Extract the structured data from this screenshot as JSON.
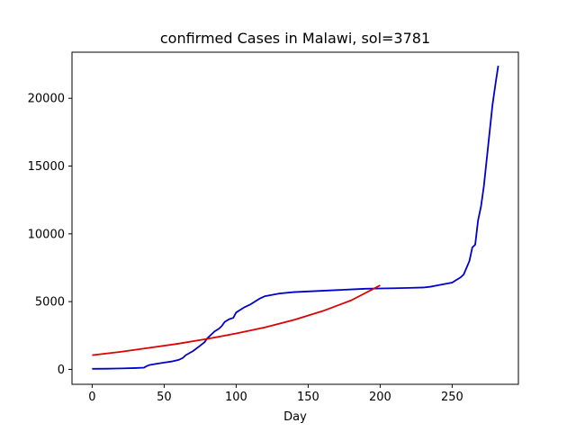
{
  "chart_data": {
    "type": "line",
    "title": "confirmed Cases in Malawi, sol=3781",
    "xlabel": "Day",
    "ylabel": "",
    "xlim": [
      -14,
      296
    ],
    "ylim": [
      -1100,
      23400
    ],
    "xticks": [
      0,
      50,
      100,
      150,
      200,
      250
    ],
    "yticks": [
      0,
      5000,
      10000,
      15000,
      20000
    ],
    "grid": false,
    "legend": "none",
    "series": [
      {
        "color": "#0000cc",
        "x": [
          0,
          10,
          20,
          30,
          36,
          38,
          40,
          45,
          50,
          55,
          58,
          60,
          63,
          65,
          70,
          75,
          78,
          80,
          83,
          85,
          88,
          90,
          92,
          95,
          98,
          100,
          103,
          106,
          110,
          113,
          116,
          120,
          125,
          130,
          140,
          150,
          160,
          170,
          180,
          190,
          200,
          210,
          220,
          230,
          235,
          240,
          245,
          250,
          253,
          256,
          258,
          260,
          262,
          264,
          266,
          268,
          270,
          272,
          274,
          276,
          278,
          280,
          282
        ],
        "y": [
          40,
          50,
          70,
          100,
          130,
          250,
          330,
          420,
          500,
          580,
          650,
          700,
          850,
          1050,
          1350,
          1750,
          2000,
          2300,
          2600,
          2800,
          3000,
          3200,
          3500,
          3700,
          3800,
          4200,
          4400,
          4600,
          4800,
          5000,
          5200,
          5400,
          5500,
          5600,
          5700,
          5750,
          5800,
          5850,
          5900,
          5950,
          5970,
          5990,
          6010,
          6040,
          6100,
          6200,
          6300,
          6400,
          6600,
          6800,
          7000,
          7500,
          8000,
          9000,
          9200,
          11000,
          12000,
          13500,
          15500,
          17500,
          19500,
          21000,
          22400
        ]
      },
      {
        "color": "#dd0000",
        "x": [
          0,
          20,
          40,
          60,
          80,
          100,
          120,
          140,
          160,
          180,
          200
        ],
        "y": [
          1050,
          1300,
          1600,
          1900,
          2250,
          2650,
          3100,
          3650,
          4300,
          5100,
          6200
        ]
      }
    ]
  }
}
